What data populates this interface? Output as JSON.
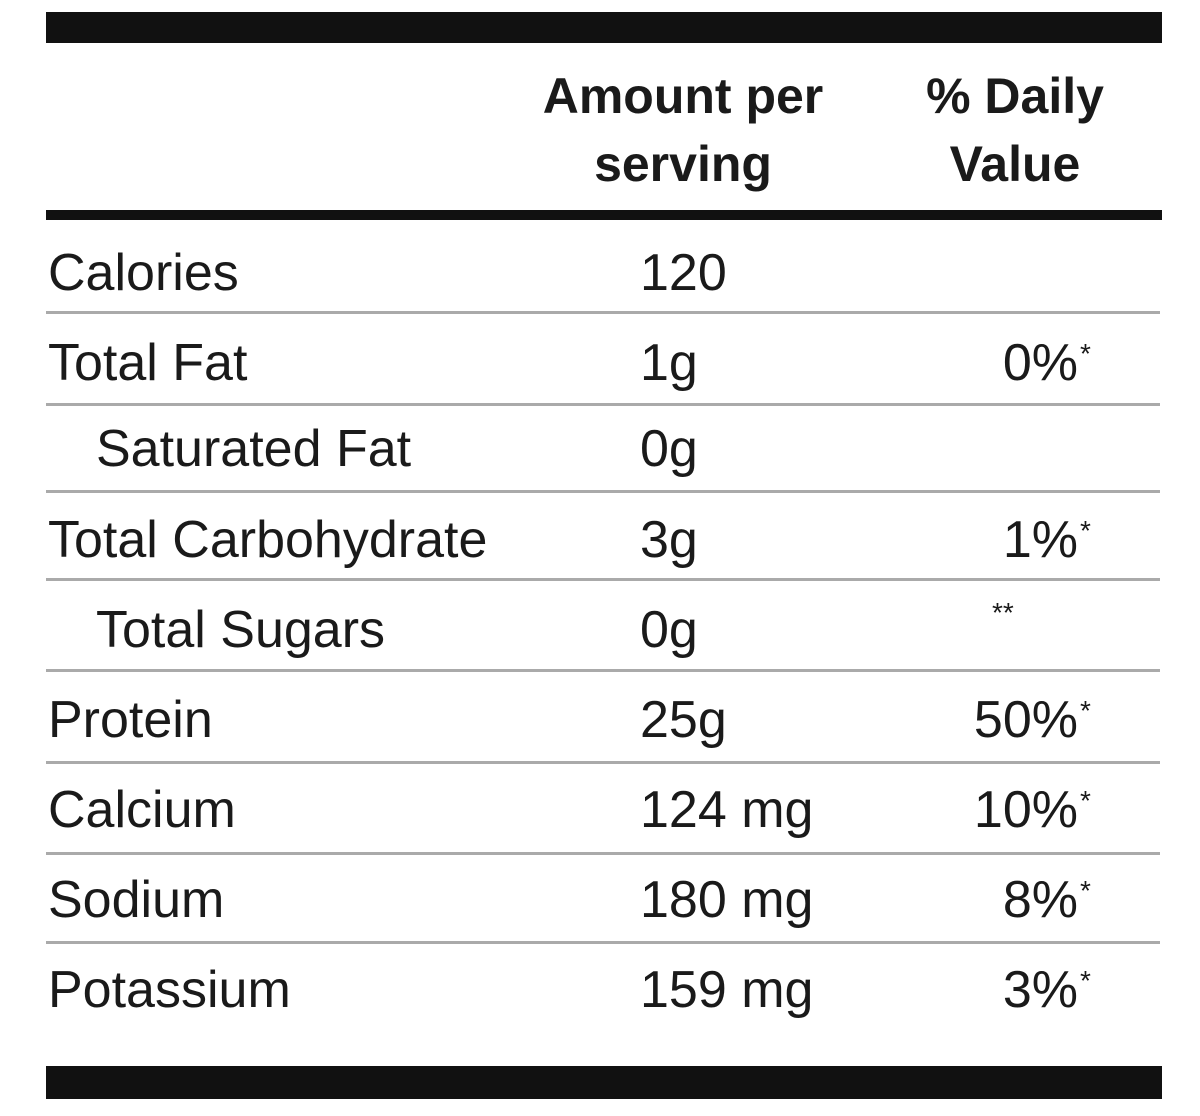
{
  "table": {
    "header": {
      "amount": "Amount per serving",
      "daily_value": "% Daily Value"
    },
    "rows": [
      {
        "nutrient": "Calories",
        "amount": "120"
      },
      {
        "nutrient": "Total Fat",
        "amount": "1g",
        "daily_value": "0%",
        "note": "*"
      },
      {
        "nutrient": "Saturated Fat",
        "amount": "0g"
      },
      {
        "nutrient": "Total Carbohydrate",
        "amount": "3g",
        "daily_value": "1%",
        "note": "*"
      },
      {
        "nutrient": "Total Sugars",
        "amount": "0g",
        "note": "**"
      },
      {
        "nutrient": "Protein",
        "amount": "25g",
        "daily_value": "50%",
        "note": "*"
      },
      {
        "nutrient": "Calcium",
        "amount": "124 mg",
        "daily_value": "10%",
        "note": "*"
      },
      {
        "nutrient": "Sodium",
        "amount": "180 mg",
        "daily_value": "8%",
        "note": "*"
      },
      {
        "nutrient": "Potassium",
        "amount": "159 mg",
        "daily_value": "3%",
        "note": "*"
      }
    ]
  }
}
